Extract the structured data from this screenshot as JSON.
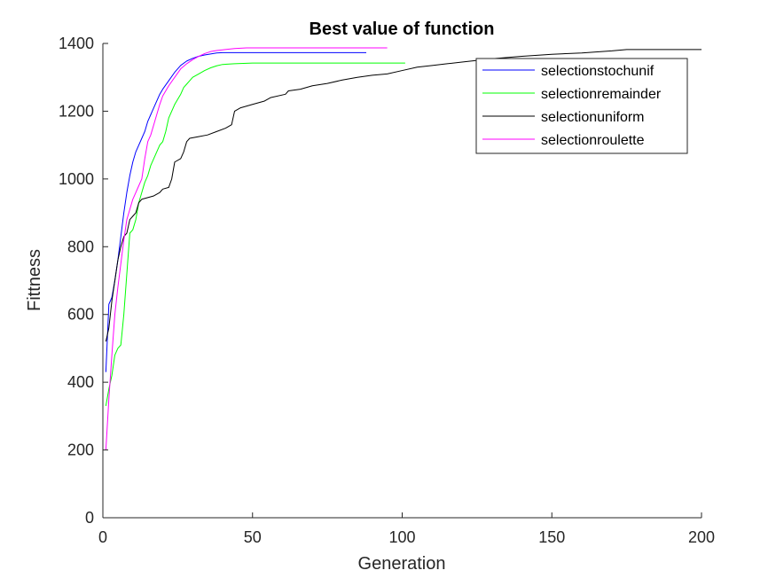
{
  "chart_data": {
    "type": "line",
    "title": "Best value of function",
    "xlabel": "Generation",
    "ylabel": "Fittness",
    "xlim": [
      0,
      200
    ],
    "ylim": [
      0,
      1400
    ],
    "xticks": [
      0,
      50,
      100,
      150,
      200
    ],
    "yticks": [
      0,
      200,
      400,
      600,
      800,
      1000,
      1200,
      1400
    ],
    "grid": false,
    "legend_position": "top-right",
    "series": [
      {
        "name": "selectionstochunif",
        "color": "#0000ff",
        "points": [
          [
            1,
            430
          ],
          [
            2,
            630
          ],
          [
            3,
            650
          ],
          [
            4,
            700
          ],
          [
            5,
            760
          ],
          [
            6,
            830
          ],
          [
            7,
            900
          ],
          [
            8,
            960
          ],
          [
            9,
            1010
          ],
          [
            10,
            1050
          ],
          [
            11,
            1080
          ],
          [
            12,
            1100
          ],
          [
            13,
            1120
          ],
          [
            14,
            1140
          ],
          [
            15,
            1170
          ],
          [
            16,
            1190
          ],
          [
            17,
            1210
          ],
          [
            18,
            1230
          ],
          [
            19,
            1250
          ],
          [
            20,
            1265
          ],
          [
            22,
            1290
          ],
          [
            24,
            1315
          ],
          [
            26,
            1335
          ],
          [
            28,
            1348
          ],
          [
            30,
            1356
          ],
          [
            32,
            1362
          ],
          [
            34,
            1366
          ],
          [
            36,
            1369
          ],
          [
            38,
            1372
          ],
          [
            40,
            1373
          ],
          [
            60,
            1373
          ],
          [
            88,
            1373
          ]
        ]
      },
      {
        "name": "selectionremainder",
        "color": "#00ff00",
        "points": [
          [
            1,
            330
          ],
          [
            2,
            380
          ],
          [
            3,
            420
          ],
          [
            4,
            480
          ],
          [
            5,
            500
          ],
          [
            6,
            510
          ],
          [
            7,
            600
          ],
          [
            8,
            720
          ],
          [
            9,
            840
          ],
          [
            10,
            850
          ],
          [
            11,
            880
          ],
          [
            12,
            930
          ],
          [
            13,
            960
          ],
          [
            14,
            990
          ],
          [
            15,
            1010
          ],
          [
            16,
            1040
          ],
          [
            17,
            1060
          ],
          [
            18,
            1080
          ],
          [
            19,
            1100
          ],
          [
            20,
            1110
          ],
          [
            21,
            1140
          ],
          [
            22,
            1180
          ],
          [
            23,
            1200
          ],
          [
            24,
            1220
          ],
          [
            25,
            1235
          ],
          [
            26,
            1250
          ],
          [
            27,
            1270
          ],
          [
            28,
            1280
          ],
          [
            29,
            1290
          ],
          [
            30,
            1300
          ],
          [
            32,
            1310
          ],
          [
            34,
            1320
          ],
          [
            36,
            1328
          ],
          [
            38,
            1334
          ],
          [
            40,
            1338
          ],
          [
            44,
            1340
          ],
          [
            50,
            1342
          ],
          [
            70,
            1342
          ],
          [
            101,
            1342
          ]
        ]
      },
      {
        "name": "selectionuniform",
        "color": "#000000",
        "points": [
          [
            1,
            520
          ],
          [
            2,
            560
          ],
          [
            3,
            640
          ],
          [
            4,
            700
          ],
          [
            5,
            760
          ],
          [
            6,
            800
          ],
          [
            7,
            830
          ],
          [
            8,
            840
          ],
          [
            9,
            880
          ],
          [
            10,
            890
          ],
          [
            11,
            900
          ],
          [
            12,
            930
          ],
          [
            13,
            940
          ],
          [
            15,
            945
          ],
          [
            17,
            950
          ],
          [
            19,
            960
          ],
          [
            20,
            970
          ],
          [
            22,
            975
          ],
          [
            23,
            1000
          ],
          [
            24,
            1050
          ],
          [
            26,
            1060
          ],
          [
            27,
            1080
          ],
          [
            28,
            1110
          ],
          [
            29,
            1120
          ],
          [
            32,
            1125
          ],
          [
            35,
            1130
          ],
          [
            38,
            1140
          ],
          [
            41,
            1150
          ],
          [
            43,
            1160
          ],
          [
            44,
            1200
          ],
          [
            46,
            1210
          ],
          [
            50,
            1220
          ],
          [
            54,
            1230
          ],
          [
            56,
            1240
          ],
          [
            61,
            1250
          ],
          [
            62,
            1260
          ],
          [
            66,
            1265
          ],
          [
            70,
            1275
          ],
          [
            75,
            1282
          ],
          [
            80,
            1292
          ],
          [
            85,
            1300
          ],
          [
            90,
            1306
          ],
          [
            95,
            1310
          ],
          [
            100,
            1320
          ],
          [
            105,
            1330
          ],
          [
            110,
            1335
          ],
          [
            115,
            1340
          ],
          [
            120,
            1345
          ],
          [
            130,
            1355
          ],
          [
            140,
            1362
          ],
          [
            150,
            1368
          ],
          [
            160,
            1372
          ],
          [
            170,
            1378
          ],
          [
            175,
            1382
          ],
          [
            185,
            1382
          ],
          [
            200,
            1382
          ]
        ]
      },
      {
        "name": "selectionroulette",
        "color": "#ff00ff",
        "points": [
          [
            1,
            200
          ],
          [
            2,
            350
          ],
          [
            3,
            480
          ],
          [
            4,
            600
          ],
          [
            5,
            680
          ],
          [
            6,
            750
          ],
          [
            7,
            820
          ],
          [
            8,
            880
          ],
          [
            9,
            910
          ],
          [
            10,
            940
          ],
          [
            11,
            960
          ],
          [
            12,
            980
          ],
          [
            13,
            1000
          ],
          [
            14,
            1060
          ],
          [
            15,
            1110
          ],
          [
            16,
            1130
          ],
          [
            17,
            1160
          ],
          [
            18,
            1190
          ],
          [
            19,
            1220
          ],
          [
            20,
            1245
          ],
          [
            22,
            1275
          ],
          [
            24,
            1300
          ],
          [
            26,
            1325
          ],
          [
            28,
            1340
          ],
          [
            30,
            1352
          ],
          [
            32,
            1362
          ],
          [
            34,
            1370
          ],
          [
            36,
            1376
          ],
          [
            38,
            1379
          ],
          [
            40,
            1381
          ],
          [
            44,
            1385
          ],
          [
            48,
            1387
          ],
          [
            60,
            1387
          ],
          [
            95,
            1387
          ]
        ]
      }
    ]
  }
}
